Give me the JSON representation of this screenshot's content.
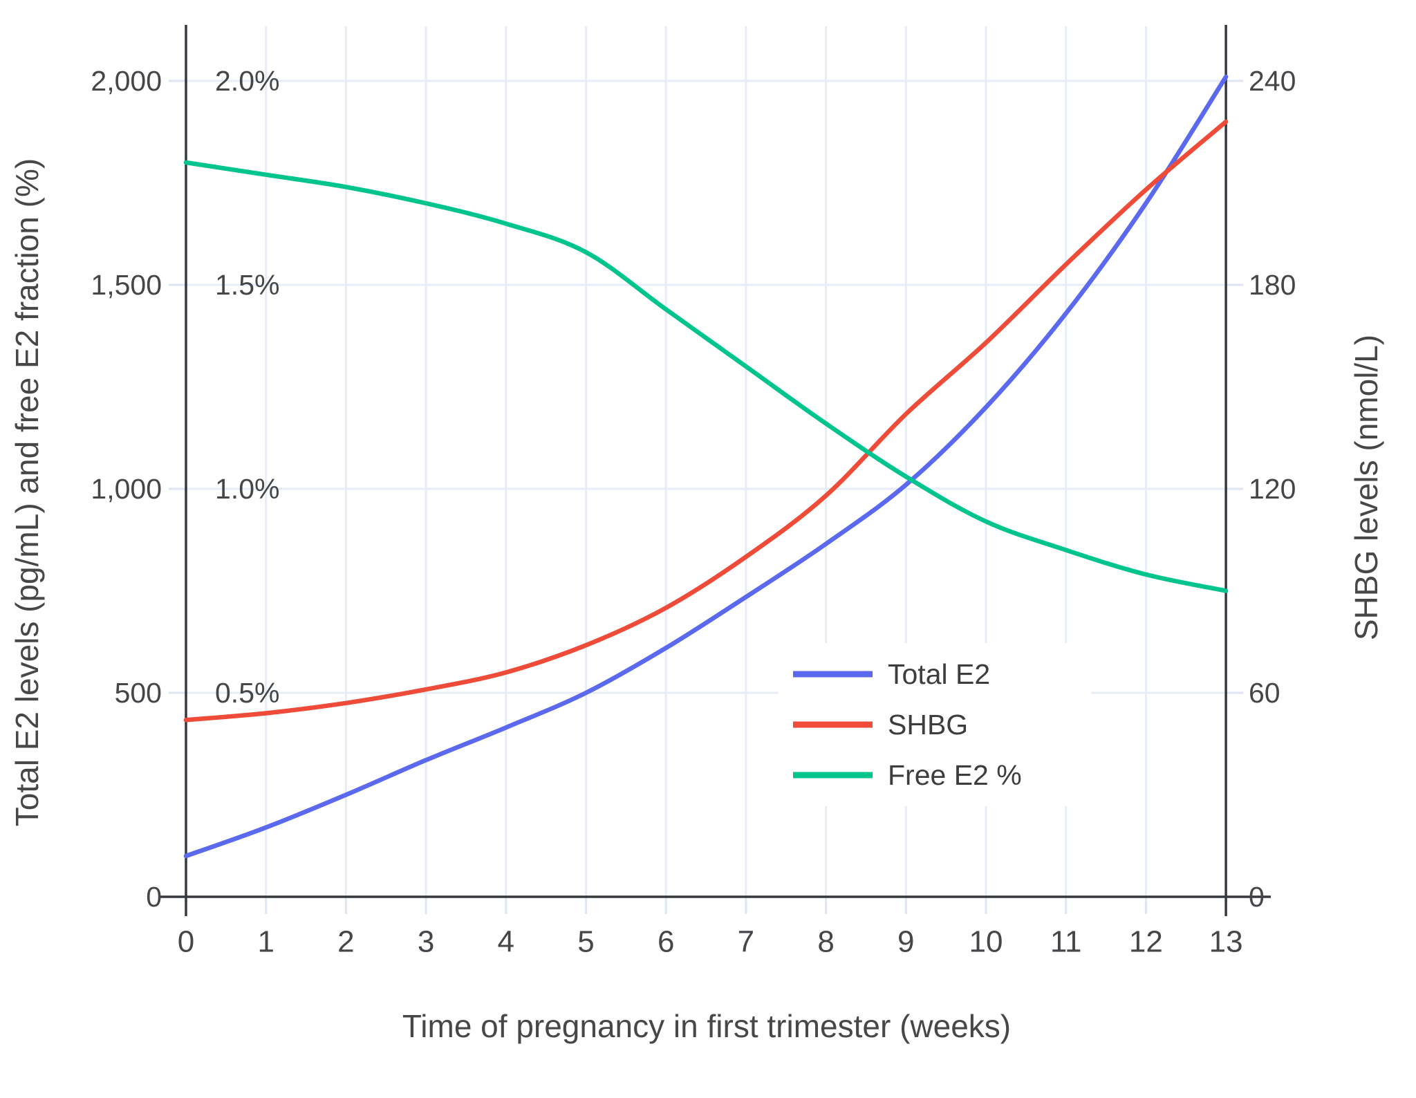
{
  "chart_data": {
    "type": "line",
    "x": [
      0,
      1,
      2,
      3,
      4,
      5,
      6,
      7,
      8,
      9,
      10,
      11,
      12,
      13
    ],
    "xlabel": "Time of pregnancy in first trimester (weeks)",
    "ylabel_left": "Total E2 levels (pg/mL) and free E2 fraction (%)",
    "ylabel_right": "SHBG levels (nmol/L)",
    "series": [
      {
        "name": "Total E2",
        "axis": "left",
        "unit": "pg/mL",
        "color": "#5a69ee",
        "values": [
          100,
          170,
          250,
          335,
          415,
          500,
          610,
          735,
          865,
          1010,
          1200,
          1430,
          1700,
          2010
        ]
      },
      {
        "name": "SHBG",
        "axis": "right",
        "unit": "nmol/L",
        "color": "#ee4b38",
        "values": [
          52,
          54,
          57,
          61,
          66,
          74,
          85,
          100,
          118,
          142,
          163,
          186,
          208,
          228
        ]
      },
      {
        "name": "Free E2 %",
        "axis": "percent",
        "unit": "%",
        "color": "#00c48e",
        "values": [
          1.8,
          1.77,
          1.74,
          1.7,
          1.65,
          1.58,
          1.44,
          1.3,
          1.16,
          1.03,
          0.92,
          0.85,
          0.79,
          0.75
        ]
      }
    ],
    "axes": {
      "left": {
        "tick_labels": [
          "0",
          "500",
          "1,000",
          "1,500",
          "2,000"
        ],
        "tick_values": [
          0,
          500,
          1000,
          1500,
          2000
        ],
        "range": [
          0,
          2000
        ]
      },
      "percent_annotations": {
        "labels": [
          "0.5%",
          "1.0%",
          "1.5%",
          "2.0%"
        ],
        "values": [
          0.5,
          1.0,
          1.5,
          2.0
        ]
      },
      "right": {
        "tick_labels": [
          "0",
          "60",
          "120",
          "180",
          "240"
        ],
        "tick_values": [
          0,
          60,
          120,
          180,
          240
        ],
        "range": [
          0,
          240
        ]
      },
      "x": {
        "tick_labels": [
          "0",
          "1",
          "2",
          "3",
          "4",
          "5",
          "6",
          "7",
          "8",
          "9",
          "10",
          "11",
          "12",
          "13"
        ],
        "tick_values": [
          0,
          1,
          2,
          3,
          4,
          5,
          6,
          7,
          8,
          9,
          10,
          11,
          12,
          13
        ],
        "range": [
          0,
          13
        ]
      }
    },
    "legend": {
      "position": "inside-right",
      "entries": [
        "Total E2",
        "SHBG",
        "Free E2 %"
      ]
    },
    "grid": true
  },
  "colors": {
    "background": "#ffffff",
    "gridline": "#e7edf6",
    "axis_line": "#35393e",
    "tick_mark": "#dde6f2",
    "text": "#444649"
  }
}
